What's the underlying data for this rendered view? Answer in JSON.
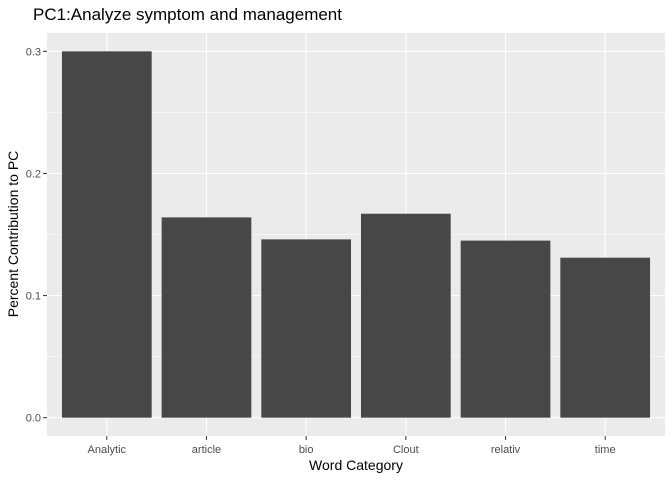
{
  "chart_data": {
    "type": "bar",
    "title": "PC1:Analyze symptom and management",
    "xlabel": "Word Category",
    "ylabel": "Percent Contribution to PC",
    "categories": [
      "Analytic",
      "article",
      "bio",
      "Clout",
      "relativ",
      "time"
    ],
    "values": [
      0.3,
      0.164,
      0.146,
      0.167,
      0.145,
      0.131
    ],
    "ylim": [
      -0.015,
      0.315
    ],
    "yticks": [
      0.0,
      0.1,
      0.2,
      0.3
    ],
    "ytick_labels": [
      "0.0",
      "0.1",
      "0.2",
      "0.3"
    ],
    "grid": true,
    "legend": "none",
    "colors": {
      "bar": "#474747",
      "panel": "#ebebeb",
      "grid": "#ffffff",
      "tick_text": "#4d4d4d"
    }
  }
}
